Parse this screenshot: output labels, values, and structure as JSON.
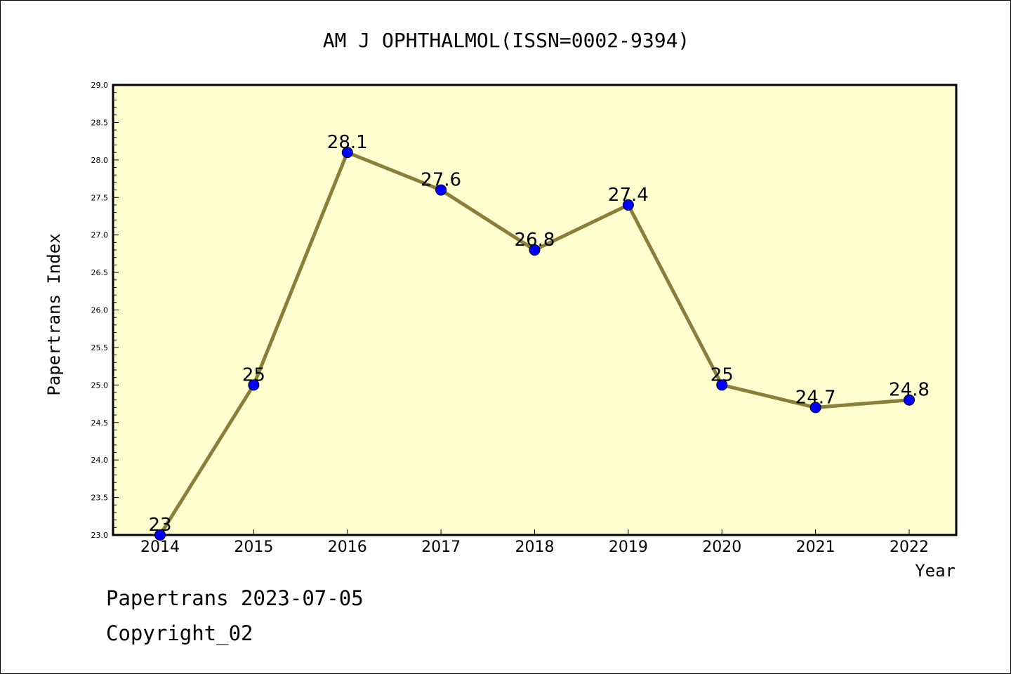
{
  "chart_data": {
    "type": "line",
    "title": "AM J OPHTHALMOL(ISSN=0002-9394)",
    "xlabel": "Year",
    "ylabel": "Papertrans Index",
    "categories": [
      "2014",
      "2015",
      "2016",
      "2017",
      "2018",
      "2019",
      "2020",
      "2021",
      "2022"
    ],
    "series": [
      {
        "values": [
          23,
          25,
          28.1,
          27.6,
          26.8,
          27.4,
          25,
          24.7,
          24.8
        ],
        "labels": [
          "23",
          "25",
          "28.1",
          "27.6",
          "26.8",
          "27.4",
          "25",
          "24.7",
          "24.8"
        ]
      }
    ],
    "ylim": [
      23.0,
      29.0
    ],
    "yticks": [
      "23.0",
      "23.5",
      "24.0",
      "24.5",
      "25.0",
      "25.5",
      "26.0",
      "26.5",
      "27.0",
      "27.5",
      "28.0",
      "28.5",
      "29.0"
    ],
    "grid": false,
    "colors": {
      "plot_background": "#ffffd0",
      "line": "#8b7d3a",
      "marker": "#0000ff"
    }
  },
  "footer": {
    "source_line": "Papertrans 2023-07-05",
    "copyright_line": "Copyright_02"
  }
}
